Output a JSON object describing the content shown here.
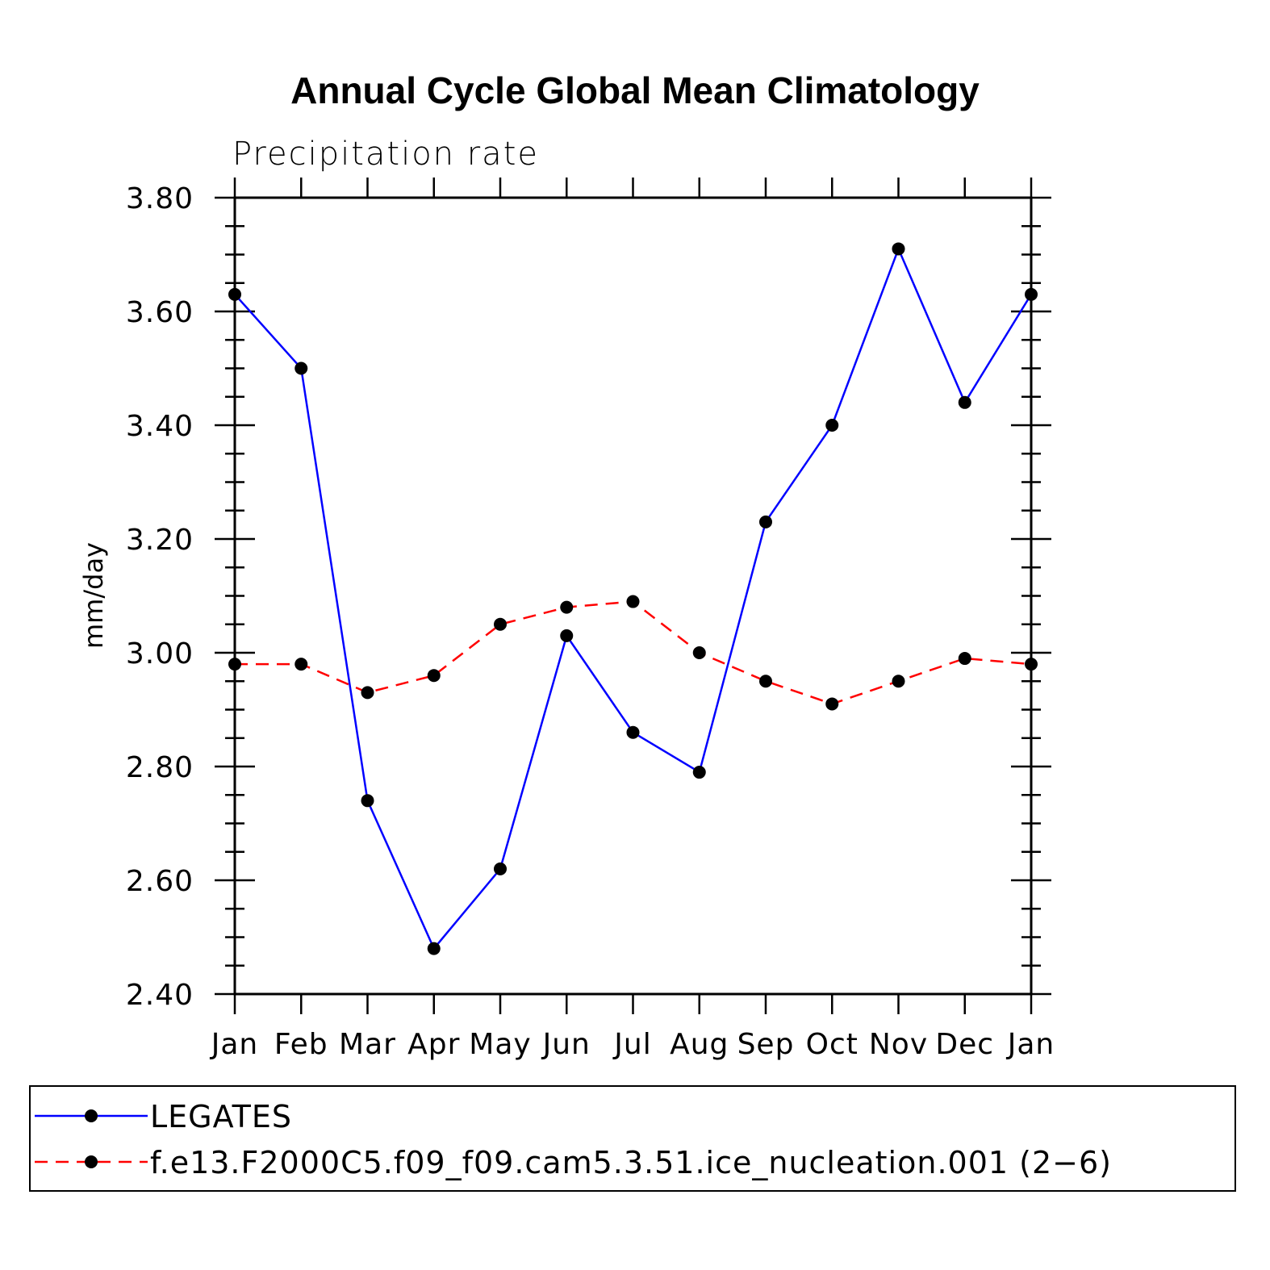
{
  "chart_data": {
    "type": "line",
    "title": "Annual Cycle Global Mean Climatology",
    "subtitle": "Precipitation rate",
    "xlabel": "",
    "ylabel": "mm/day",
    "ylim": [
      2.4,
      3.8
    ],
    "y_ticks": [
      "2.40",
      "2.60",
      "2.80",
      "3.00",
      "3.20",
      "3.40",
      "3.60",
      "3.80"
    ],
    "categories": [
      "Jan",
      "Feb",
      "Mar",
      "Apr",
      "May",
      "Jun",
      "Jul",
      "Aug",
      "Sep",
      "Oct",
      "Nov",
      "Dec",
      "Jan"
    ],
    "legend_position": "bottom",
    "series": [
      {
        "name": "LEGATES",
        "color": "#0000ff",
        "line_style": "solid",
        "marker": "filled-circle",
        "values": [
          3.63,
          3.5,
          2.74,
          2.48,
          2.62,
          3.03,
          2.86,
          2.79,
          3.23,
          3.4,
          3.71,
          3.44,
          3.63
        ]
      },
      {
        "name": "f.e13.F2000C5.f09_f09.cam5.3.51.ice_nucleation.001 (2−6)",
        "color": "#ff0000",
        "line_style": "dashed",
        "marker": "filled-circle",
        "values": [
          2.98,
          2.98,
          2.93,
          2.96,
          3.05,
          3.08,
          3.09,
          3.0,
          2.95,
          2.91,
          2.95,
          2.99,
          2.98
        ]
      }
    ]
  }
}
